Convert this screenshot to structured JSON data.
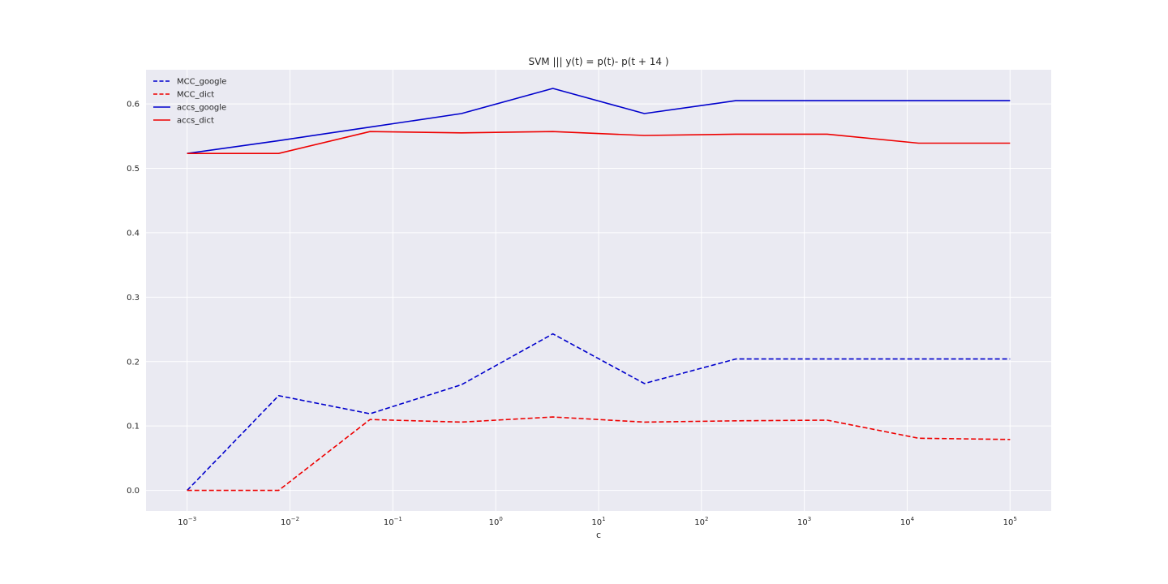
{
  "chart_data": {
    "type": "line",
    "title": "SVM ||| y(t) = p(t)-  p(t + 14 )",
    "xlabel": "c",
    "ylabel": "",
    "xscale": "log",
    "xlim_log10": [
      -3.4,
      5.4
    ],
    "ylim": [
      -0.032,
      0.653
    ],
    "grid": true,
    "legend_position": "top-left",
    "x": [
      0.001,
      0.007743,
      0.059948,
      0.464159,
      3.593814,
      27.825594,
      215.443469,
      1668.100537,
      12915.49665,
      100000
    ],
    "x_ticks": [
      {
        "value": -3,
        "base": "10",
        "exp": "−3"
      },
      {
        "value": -2,
        "base": "10",
        "exp": "−2"
      },
      {
        "value": -1,
        "base": "10",
        "exp": "−1"
      },
      {
        "value": 0,
        "base": "10",
        "exp": "0"
      },
      {
        "value": 1,
        "base": "10",
        "exp": "1"
      },
      {
        "value": 2,
        "base": "10",
        "exp": "2"
      },
      {
        "value": 3,
        "base": "10",
        "exp": "3"
      },
      {
        "value": 4,
        "base": "10",
        "exp": "4"
      },
      {
        "value": 5,
        "base": "10",
        "exp": "5"
      }
    ],
    "y_ticks": [
      "0.0",
      "0.1",
      "0.2",
      "0.3",
      "0.4",
      "0.5",
      "0.6"
    ],
    "y_tick_values": [
      0.0,
      0.1,
      0.2,
      0.3,
      0.4,
      0.5,
      0.6
    ],
    "series": [
      {
        "name": "MCC_google",
        "color": "#0000cc",
        "dash": "dashed",
        "values": [
          0.0,
          0.147,
          0.119,
          0.164,
          0.243,
          0.166,
          0.204,
          0.204,
          0.204,
          0.204
        ]
      },
      {
        "name": "MCC_dict",
        "color": "#ee0000",
        "dash": "dashed",
        "values": [
          0.0,
          0.0,
          0.11,
          0.106,
          0.114,
          0.106,
          0.108,
          0.109,
          0.081,
          0.079
        ]
      },
      {
        "name": "accs_google",
        "color": "#0000cc",
        "dash": "solid",
        "values": [
          0.523,
          0.543,
          0.564,
          0.585,
          0.624,
          0.585,
          0.605,
          0.605,
          0.605,
          0.605
        ]
      },
      {
        "name": "accs_dict",
        "color": "#ee0000",
        "dash": "solid",
        "values": [
          0.523,
          0.523,
          0.557,
          0.555,
          0.557,
          0.551,
          0.553,
          0.553,
          0.539,
          0.539
        ]
      }
    ]
  }
}
